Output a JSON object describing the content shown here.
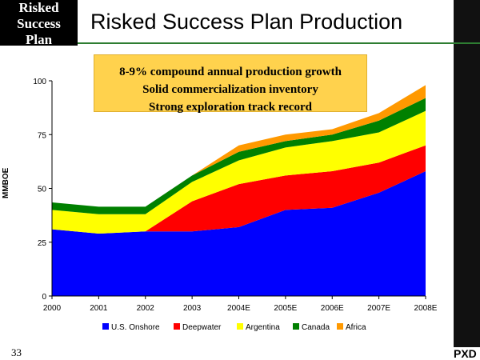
{
  "slide": {
    "tag_lines": [
      "Risked",
      "Success",
      "Plan"
    ],
    "title": "Risked Success Plan Production",
    "page_number": "33",
    "logo": "PXD"
  },
  "callout": {
    "lines": [
      "8-9% compound annual production growth",
      "Solid commercialization inventory",
      "Strong exploration track record"
    ]
  },
  "chart_data": {
    "type": "area",
    "stacked": true,
    "title": "",
    "xlabel": "",
    "ylabel": "MMBOE",
    "ylim": [
      0,
      100
    ],
    "yticks": [
      0,
      25,
      50,
      75,
      100
    ],
    "categories": [
      "2000",
      "2001",
      "2002",
      "2003",
      "2004E",
      "2005E",
      "2006E",
      "2007E",
      "2008E"
    ],
    "series": [
      {
        "name": "U.S. Onshore",
        "color": "#0000ff",
        "values": [
          31,
          29,
          30,
          30,
          32,
          40,
          41,
          48,
          58
        ]
      },
      {
        "name": "Deepwater",
        "color": "#ff0000",
        "values": [
          0,
          0,
          0,
          14,
          20,
          16,
          17,
          14,
          12
        ]
      },
      {
        "name": "Argentina",
        "color": "#ffff00",
        "values": [
          9,
          9,
          8,
          9,
          11,
          13,
          14,
          14,
          16
        ]
      },
      {
        "name": "Canada",
        "color": "#008000",
        "values": [
          3.5,
          3.5,
          3.5,
          3,
          4,
          3,
          3,
          5.5,
          6
        ]
      },
      {
        "name": "Africa",
        "color": "#ff9900",
        "values": [
          0,
          0,
          0,
          0,
          3,
          3,
          2.5,
          3.5,
          6
        ]
      }
    ],
    "legend_position": "bottom"
  }
}
